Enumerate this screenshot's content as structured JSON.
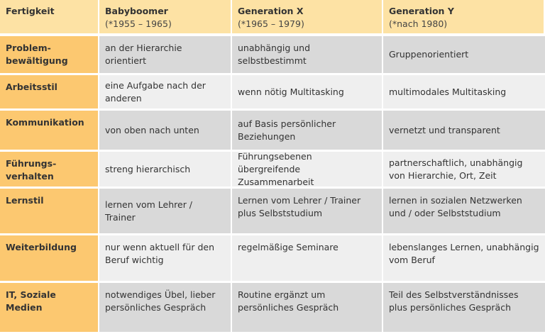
{
  "header": {
    "col0": "Fertigkeit",
    "cols": [
      {
        "title": "Babyboomer",
        "sub": "(*1955 – 1965)"
      },
      {
        "title": "Generation X",
        "sub": "(*1965 – 1979)"
      },
      {
        "title": "Generation Y",
        "sub": "(*nach 1980)"
      }
    ]
  },
  "rows": [
    {
      "label": "Problem-\nbewältigung",
      "values": [
        "an der Hierarchie orientiert",
        "unabhängig und selbstbestimmt",
        "Gruppenorientiert"
      ]
    },
    {
      "label": "Arbeitsstil",
      "values": [
        "eine Aufgabe nach der anderen",
        "wenn nötig Multitasking",
        "multimodales Multitasking"
      ]
    },
    {
      "label": "Kommunikation",
      "values": [
        "von oben nach unten",
        "auf  Basis persönlicher Beziehungen",
        "vernetzt und transparent"
      ]
    },
    {
      "label": "Führungs-\nverhalten",
      "values": [
        "streng hierarchisch",
        "Führungsebenen übergreifende Zusammenarbeit",
        "partnerschaftlich, unabhängig von Hierarchie, Ort, Zeit"
      ]
    },
    {
      "label": "Lernstil",
      "values": [
        "lernen vom Lehrer / Trainer",
        "Lernen vom Lehrer / Trainer plus Selbststudium",
        "lernen in sozialen Netzwerken und / oder Selbststudium"
      ]
    },
    {
      "label": "Weiterbildung",
      "values": [
        "nur wenn aktuell für den Beruf wichtig",
        "regelmäßige Seminare",
        "lebenslanges Lernen, unabhängig vom Beruf"
      ]
    },
    {
      "label": "IT, Soziale Medien",
      "values": [
        "notwendiges Übel, lieber persönliches Gespräch",
        "Routine ergänzt um persönliches Gespräch",
        "Teil des Selbstverständnisses plus persönliches Gespräch"
      ]
    }
  ]
}
